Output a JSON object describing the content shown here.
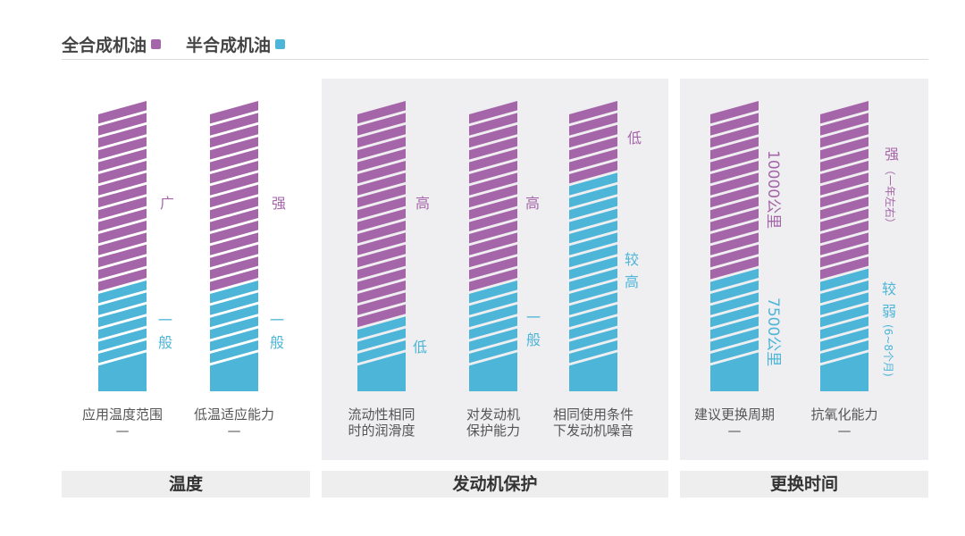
{
  "legend": [
    {
      "label": "全合成机油",
      "color": "#a566a9"
    },
    {
      "label": "半合成机油",
      "color": "#4db5d8"
    }
  ],
  "sections": [
    "温度",
    "发动机保护",
    "更换时间"
  ],
  "chart_data": {
    "type": "bar",
    "stacked": true,
    "series": [
      {
        "name": "全合成机油",
        "color": "#a566a9"
      },
      {
        "name": "半合成机油",
        "color": "#4db5d8"
      }
    ],
    "categories": [
      {
        "caption": [
          "应用温度范围",
          "—"
        ],
        "semi_fraction": 0.38,
        "full_label": "广",
        "semi_label": "一般"
      },
      {
        "caption": [
          "低温适应能力",
          "—"
        ],
        "semi_fraction": 0.38,
        "full_label": "强",
        "semi_label": "一般"
      },
      {
        "caption": [
          "流动性相同",
          "时的润滑度"
        ],
        "semi_fraction": 0.26,
        "full_label": "高",
        "semi_label": "低"
      },
      {
        "caption": [
          "对发动机",
          "保护能力"
        ],
        "semi_fraction": 0.38,
        "full_label": "高",
        "semi_label": "一般"
      },
      {
        "caption": [
          "相同使用条件",
          "下发动机噪音"
        ],
        "semi_fraction": 0.75,
        "full_label": "低",
        "semi_label": "较高"
      },
      {
        "caption": [
          "建议更换周期",
          "—"
        ],
        "semi_fraction": 0.42,
        "full_label": "10000公里",
        "semi_label": "7500公里"
      },
      {
        "caption": [
          "抗氧化能力",
          "—"
        ],
        "semi_fraction": 0.42,
        "full_label": "强",
        "full_note": "（一年左右）",
        "semi_label": "较弱",
        "semi_note": "(6~8个月)"
      }
    ]
  }
}
